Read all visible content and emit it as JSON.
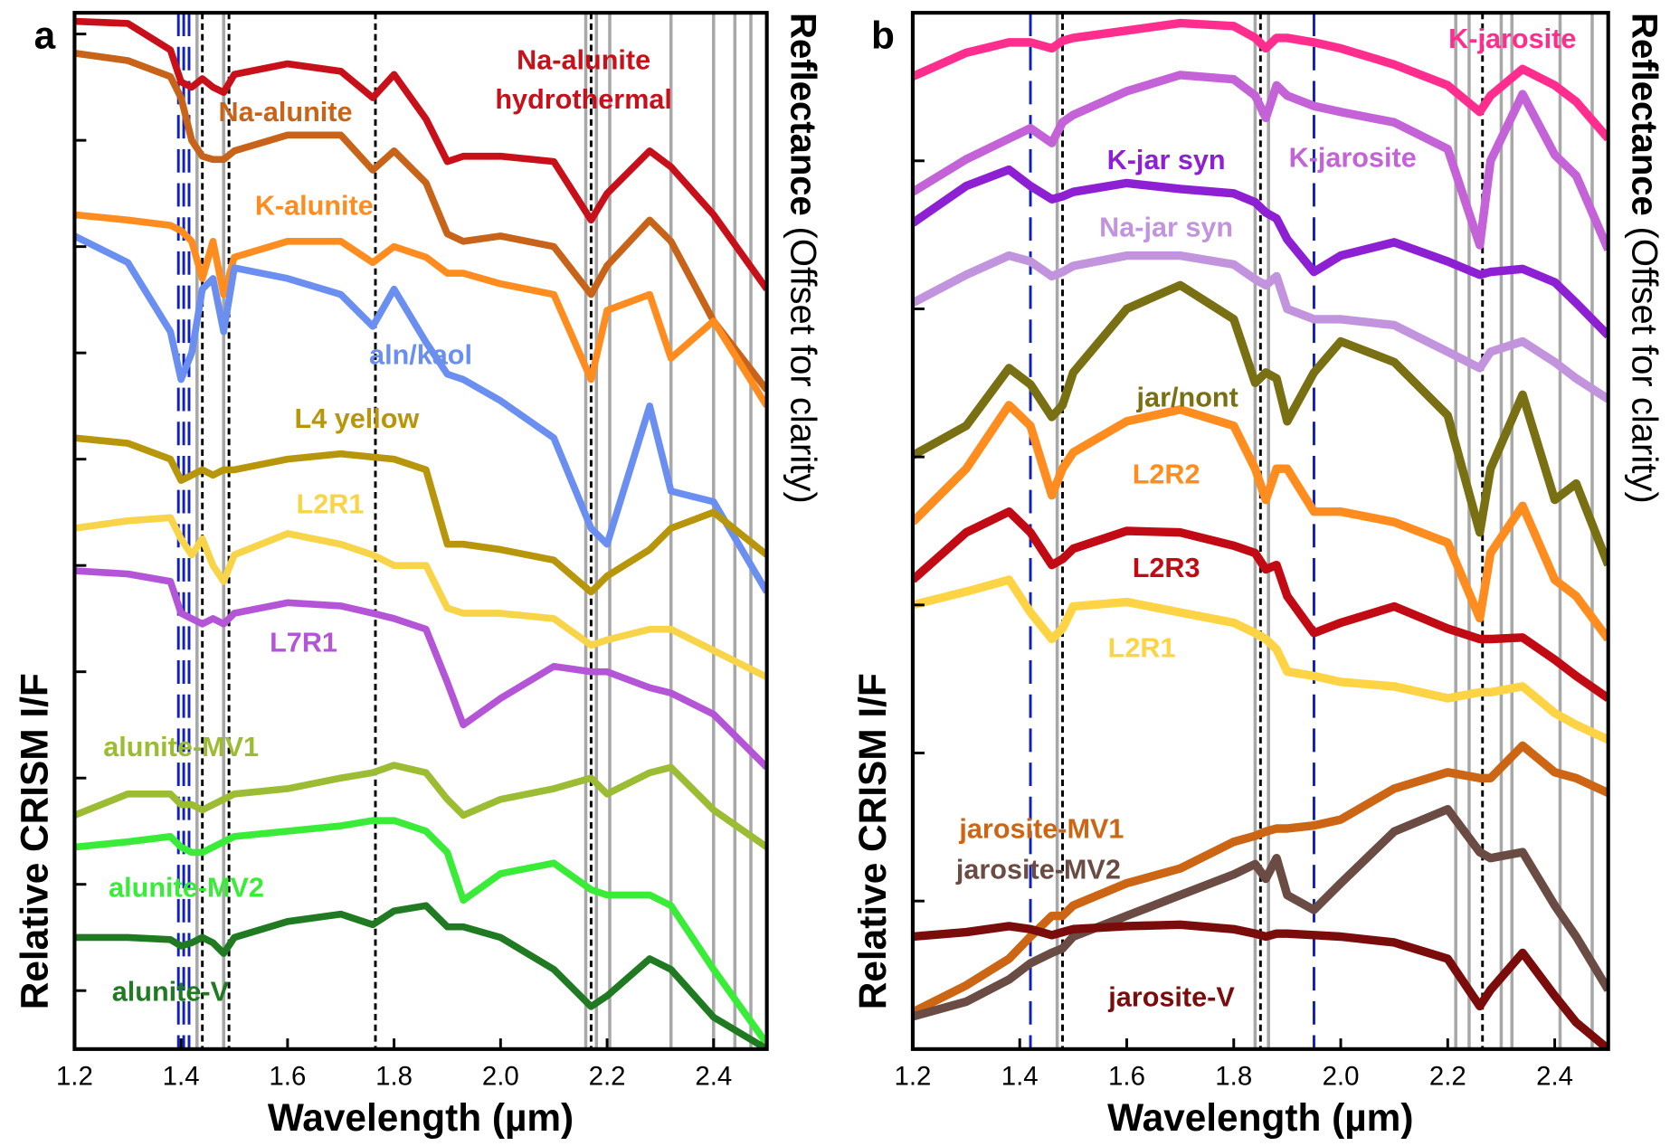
{
  "chart_data": [
    {
      "type": "line",
      "panel_label": "a",
      "xlabel": "Wavelength (µm)",
      "ylabel": "Relative CRISM I/F",
      "ylabel_right": "Reflectance",
      "ylabel_right_note": "(Offset for clarity)",
      "x": [
        1.2,
        1.3,
        1.38,
        1.4,
        1.42,
        1.44,
        1.46,
        1.48,
        1.5,
        1.6,
        1.7,
        1.76,
        1.8,
        1.86,
        1.9,
        1.93,
        2.0,
        2.1,
        2.17,
        2.2,
        2.28,
        2.32,
        2.4,
        2.5
      ],
      "xlim": [
        1.2,
        2.5
      ],
      "xticks": [
        1.2,
        1.4,
        1.6,
        1.8,
        {
          "value": 2,
          "label": "2.0"
        },
        2.2,
        2.4
      ],
      "ylim": [
        -0.55,
        9.2
      ],
      "yticks": [
        0,
        1,
        2,
        3,
        4,
        5,
        6,
        7,
        8,
        9
      ],
      "vlines": [
        {
          "x": [
            1.43,
            1.48,
            2.16,
            2.18,
            2.205,
            2.32,
            2.4,
            2.44,
            2.47
          ],
          "color": "#a8a8a8",
          "dash": false
        },
        {
          "x": [
            1.395,
            1.405,
            1.415
          ],
          "color": "#1020c0",
          "dash": true
        },
        {
          "x": [
            1.44,
            1.49,
            1.765,
            2.17
          ],
          "color": "#000000",
          "dash": true
        }
      ],
      "series": [
        {
          "name": "Na-alunite hydrothermal",
          "color": "#c8101a",
          "values": [
            9.12,
            9.1,
            8.85,
            8.55,
            8.5,
            8.58,
            8.5,
            8.45,
            8.62,
            8.72,
            8.65,
            8.4,
            8.62,
            8.2,
            7.8,
            7.85,
            7.85,
            7.8,
            7.25,
            7.5,
            7.9,
            7.75,
            7.3,
            6.6
          ]
        },
        {
          "name": "Na-alunite",
          "color": "#c8641a",
          "values": [
            8.82,
            8.75,
            8.6,
            8.4,
            8.0,
            7.85,
            7.82,
            7.82,
            7.9,
            8.05,
            8.05,
            7.72,
            7.9,
            7.6,
            7.12,
            7.05,
            7.1,
            7.0,
            6.55,
            6.82,
            7.25,
            7.05,
            6.3,
            5.65
          ]
        },
        {
          "name": "K-alunite",
          "color": "#ff8c1e",
          "values": [
            7.3,
            7.25,
            7.2,
            7.15,
            7.05,
            6.7,
            7.05,
            6.55,
            6.9,
            7.05,
            7.05,
            6.85,
            7.0,
            6.9,
            6.75,
            6.75,
            6.65,
            6.55,
            5.75,
            6.4,
            6.55,
            5.95,
            6.3,
            5.5
          ]
        },
        {
          "name": "aln/kaol",
          "color": "#6a8ff0",
          "values": [
            7.1,
            6.85,
            6.2,
            5.75,
            6.0,
            6.6,
            6.7,
            6.2,
            6.8,
            6.7,
            6.55,
            6.25,
            6.6,
            6.1,
            5.8,
            5.75,
            5.55,
            5.2,
            4.35,
            4.2,
            5.5,
            4.7,
            4.6,
            3.75
          ]
        },
        {
          "name": "L4 yellow",
          "color": "#b8960c",
          "values": [
            5.2,
            5.15,
            5.0,
            4.8,
            4.85,
            4.9,
            4.85,
            4.9,
            4.9,
            5.0,
            5.05,
            5.02,
            5.0,
            4.9,
            4.2,
            4.2,
            4.15,
            4.05,
            3.75,
            3.9,
            4.15,
            4.35,
            4.5,
            4.1
          ]
        },
        {
          "name": "L2R1",
          "color": "#f8d448",
          "values": [
            4.35,
            4.42,
            4.45,
            4.25,
            4.1,
            4.25,
            4.0,
            3.85,
            4.1,
            4.3,
            4.2,
            4.1,
            4.0,
            4.0,
            3.6,
            3.55,
            3.55,
            3.5,
            3.25,
            3.3,
            3.4,
            3.4,
            3.2,
            2.95
          ]
        },
        {
          "name": "L7R1",
          "color": "#b455d8",
          "values": [
            3.95,
            3.92,
            3.85,
            3.55,
            3.5,
            3.45,
            3.5,
            3.45,
            3.55,
            3.65,
            3.62,
            3.55,
            3.5,
            3.4,
            2.9,
            2.5,
            2.75,
            3.05,
            3.0,
            3.0,
            2.85,
            2.8,
            2.6,
            2.1
          ]
        },
        {
          "name": "alunite-MV1",
          "color": "#9cbc34",
          "values": [
            1.65,
            1.85,
            1.85,
            1.75,
            1.75,
            1.7,
            1.75,
            1.8,
            1.85,
            1.9,
            2.0,
            2.05,
            2.12,
            2.05,
            1.8,
            1.65,
            1.8,
            1.9,
            2.0,
            1.85,
            2.05,
            2.1,
            1.7,
            1.35
          ]
        },
        {
          "name": "alunite-MV2",
          "color": "#38ec38",
          "values": [
            1.35,
            1.4,
            1.45,
            1.35,
            1.3,
            1.3,
            1.35,
            1.4,
            1.45,
            1.5,
            1.55,
            1.6,
            1.6,
            1.5,
            1.3,
            0.85,
            1.1,
            1.2,
            0.95,
            0.9,
            0.9,
            0.8,
            0.2,
            -0.5
          ]
        },
        {
          "name": "alunite-V",
          "color": "#1f7a22",
          "values": [
            0.5,
            0.5,
            0.48,
            0.42,
            0.45,
            0.5,
            0.45,
            0.35,
            0.5,
            0.65,
            0.72,
            0.62,
            0.75,
            0.8,
            0.6,
            0.6,
            0.5,
            0.2,
            -0.15,
            -0.05,
            0.3,
            0.2,
            -0.25,
            -0.55
          ]
        }
      ]
    },
    {
      "type": "line",
      "panel_label": "b",
      "xlabel": "Wavelength (µm)",
      "ylabel": "Relative CRISM I/F",
      "ylabel_right": "Reflectance",
      "ylabel_right_note": "(Offset for clarity)",
      "x": [
        1.2,
        1.3,
        1.38,
        1.42,
        1.46,
        1.48,
        1.5,
        1.6,
        1.7,
        1.8,
        1.84,
        1.86,
        1.88,
        1.9,
        1.95,
        2.0,
        2.1,
        2.2,
        2.26,
        2.28,
        2.34,
        2.4,
        2.44,
        2.5
      ],
      "xlim": [
        1.2,
        2.5
      ],
      "xticks": [
        1.2,
        1.4,
        1.6,
        1.8,
        {
          "value": 2,
          "label": "2.0"
        },
        2.2,
        2.4
      ],
      "ylim": [
        0,
        7
      ],
      "yticks": [
        1,
        2,
        3,
        4,
        5,
        6
      ],
      "vlines": [
        {
          "x": [
            1.47,
            1.84,
            1.865,
            2.215,
            2.24,
            2.3,
            2.32,
            2.41,
            2.47
          ],
          "color": "#a8a8a8",
          "dash": false
        },
        {
          "x": [
            1.42,
            1.95
          ],
          "color": "#1020c0",
          "dash": true
        },
        {
          "x": [
            1.48,
            1.85,
            2.265
          ],
          "color": "#000000",
          "dash": true
        }
      ],
      "series": [
        {
          "name": "K-jarosite",
          "color": "#ff2e8e",
          "values": [
            6.57,
            6.73,
            6.8,
            6.8,
            6.76,
            6.81,
            6.83,
            6.88,
            6.93,
            6.91,
            6.83,
            6.76,
            6.83,
            6.83,
            6.8,
            6.76,
            6.65,
            6.51,
            6.33,
            6.44,
            6.62,
            6.51,
            6.4,
            6.15
          ]
        },
        {
          "name": "K-jarosite",
          "color": "#c462d8",
          "values": [
            5.79,
            6.01,
            6.15,
            6.22,
            6.12,
            6.26,
            6.31,
            6.47,
            6.58,
            6.55,
            6.44,
            6.29,
            6.51,
            6.44,
            6.37,
            6.33,
            6.26,
            6.08,
            5.43,
            6.0,
            6.45,
            6.04,
            5.9,
            5.4
          ]
        },
        {
          "name": "K-jar syn",
          "color": "#8c20d2",
          "values": [
            5.58,
            5.83,
            5.94,
            5.83,
            5.74,
            5.76,
            5.79,
            5.85,
            5.81,
            5.78,
            5.72,
            5.65,
            5.61,
            5.47,
            5.25,
            5.36,
            5.45,
            5.32,
            5.23,
            5.25,
            5.27,
            5.18,
            5.04,
            4.82
          ]
        },
        {
          "name": "Na-jar syn",
          "color": "#c394de",
          "values": [
            5.04,
            5.23,
            5.36,
            5.32,
            5.22,
            5.25,
            5.29,
            5.36,
            5.36,
            5.3,
            5.2,
            5.16,
            5.22,
            5.0,
            4.93,
            4.93,
            4.89,
            4.71,
            4.6,
            4.71,
            4.78,
            4.64,
            4.53,
            4.39
          ]
        },
        {
          "name": "jar/nont",
          "color": "#787012",
          "values": [
            4.01,
            4.21,
            4.6,
            4.49,
            4.27,
            4.35,
            4.57,
            5.0,
            5.16,
            4.93,
            4.5,
            4.57,
            4.53,
            4.24,
            4.57,
            4.78,
            4.64,
            4.28,
            3.49,
            3.92,
            4.42,
            3.71,
            3.82,
            3.27
          ]
        },
        {
          "name": "L2R2",
          "color": "#ff8c1e",
          "values": [
            3.56,
            3.92,
            4.35,
            4.21,
            3.74,
            3.92,
            4.03,
            4.24,
            4.32,
            4.21,
            3.92,
            3.71,
            3.92,
            3.92,
            3.63,
            3.63,
            3.56,
            3.42,
            2.91,
            3.35,
            3.67,
            3.17,
            3.06,
            2.77
          ]
        },
        {
          "name": "L2R3",
          "color": "#c20a14",
          "values": [
            3.17,
            3.49,
            3.63,
            3.49,
            3.27,
            3.31,
            3.38,
            3.5,
            3.49,
            3.4,
            3.35,
            3.24,
            3.27,
            3.06,
            2.81,
            2.88,
            2.99,
            2.84,
            2.77,
            2.77,
            2.78,
            2.63,
            2.52,
            2.37
          ]
        },
        {
          "name": "L2R1",
          "color": "#ffd444",
          "values": [
            3.0,
            3.09,
            3.17,
            2.95,
            2.77,
            2.84,
            2.99,
            3.02,
            2.95,
            2.88,
            2.81,
            2.77,
            2.7,
            2.55,
            2.52,
            2.48,
            2.45,
            2.37,
            2.41,
            2.41,
            2.45,
            2.27,
            2.19,
            2.09
          ]
        },
        {
          "name": "jarosite-MV1",
          "color": "#cc6614",
          "values": [
            0.25,
            0.43,
            0.61,
            0.76,
            0.9,
            0.9,
            0.97,
            1.12,
            1.22,
            1.4,
            1.44,
            1.47,
            1.49,
            1.49,
            1.51,
            1.55,
            1.76,
            1.87,
            1.83,
            1.83,
            2.05,
            1.87,
            1.83,
            1.73
          ]
        },
        {
          "name": "jarosite-MV2",
          "color": "#6b4c44",
          "values": [
            0.22,
            0.32,
            0.47,
            0.58,
            0.65,
            0.68,
            0.76,
            0.9,
            1.04,
            1.18,
            1.25,
            1.15,
            1.29,
            1.04,
            0.94,
            1.12,
            1.47,
            1.62,
            1.33,
            1.29,
            1.33,
            0.97,
            0.76,
            0.4
          ]
        },
        {
          "name": "jarosite-V",
          "color": "#7a0c0c",
          "values": [
            0.76,
            0.79,
            0.83,
            0.81,
            0.77,
            0.79,
            0.81,
            0.83,
            0.84,
            0.81,
            0.78,
            0.76,
            0.78,
            0.78,
            0.77,
            0.76,
            0.72,
            0.61,
            0.29,
            0.4,
            0.65,
            0.36,
            0.18,
            0.0
          ]
        }
      ]
    }
  ]
}
